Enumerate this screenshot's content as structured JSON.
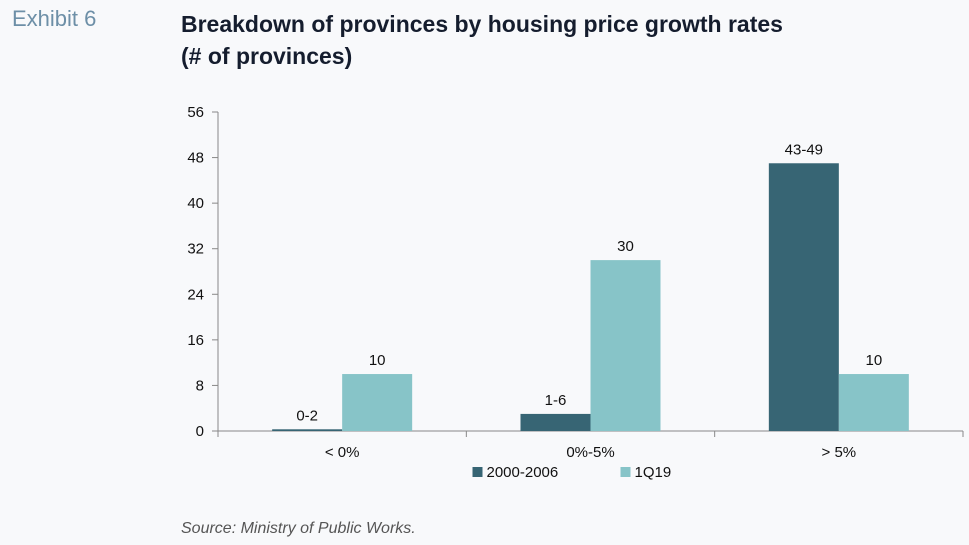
{
  "exhibit_label": "Exhibit 6",
  "title_line1": "Breakdown of provinces by housing price growth rates",
  "title_line2": "(# of provinces)",
  "source": "Source: Ministry of Public Works.",
  "colors": {
    "series_2000_2006": "#376574",
    "series_1Q19": "#87c4c8",
    "exhibit": "#6d8fa7"
  },
  "chart_data": {
    "type": "bar",
    "categories": [
      "< 0%",
      "0%-5%",
      "> 5%"
    ],
    "series": [
      {
        "name": "2000-2006",
        "values": [
          0.3,
          3,
          47
        ],
        "labels": [
          "0-2",
          "1-6",
          "43-49"
        ],
        "color": "#376574"
      },
      {
        "name": "1Q19",
        "values": [
          10,
          30,
          10
        ],
        "labels": [
          "10",
          "30",
          "10"
        ],
        "color": "#87c4c8"
      }
    ],
    "ylim": [
      0,
      56
    ],
    "yticks": [
      0,
      8,
      16,
      24,
      32,
      40,
      48,
      56
    ],
    "xlabel": "",
    "ylabel": "",
    "legend_position": "bottom",
    "grid": false
  }
}
